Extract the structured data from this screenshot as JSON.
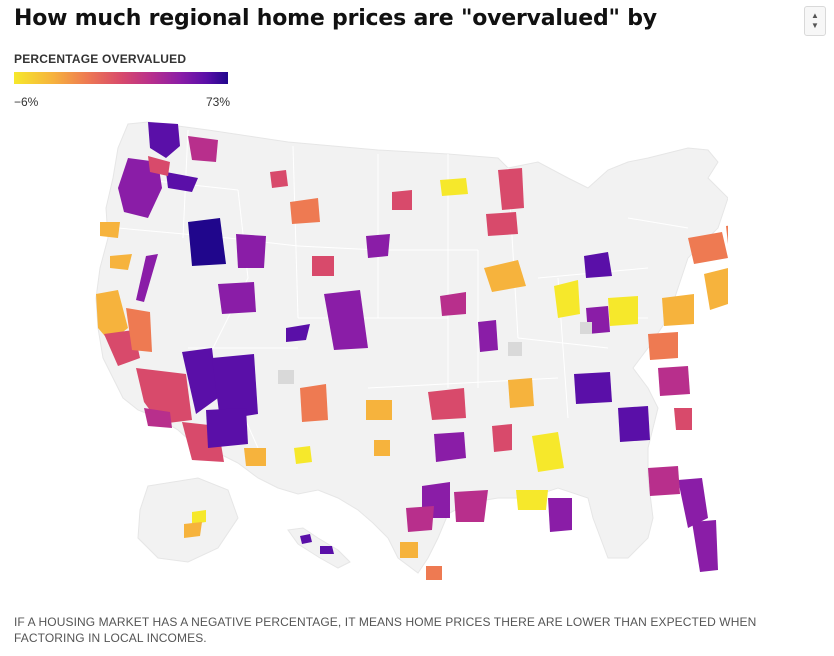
{
  "title": "How much regional home prices are \"overvalued\" by",
  "legend": {
    "title": "PERCENTAGE OVERVALUED",
    "min_label": "−6%",
    "max_label": "73%",
    "min_value": -6,
    "max_value": 73,
    "colors": [
      "#f6e82b",
      "#f6b33d",
      "#ee7a52",
      "#d84a6b",
      "#b82f8c",
      "#8a1da7",
      "#5a0fa8",
      "#20068c"
    ]
  },
  "map": {
    "region": "United States (incl. Alaska and Hawaii insets)",
    "no_data_color": "#d9d9d9",
    "land_color": "#f2f2f2",
    "border_color": "#ffffff"
  },
  "footnote": "IF A HOUSING MARKET HAS A NEGATIVE PERCENTAGE, IT MEANS HOME PRICES THERE ARE LOWER THAN EXPECTED WHEN FACTORING IN LOCAL INCOMES.",
  "icons": {
    "scroll": "up-down-arrows-icon"
  }
}
